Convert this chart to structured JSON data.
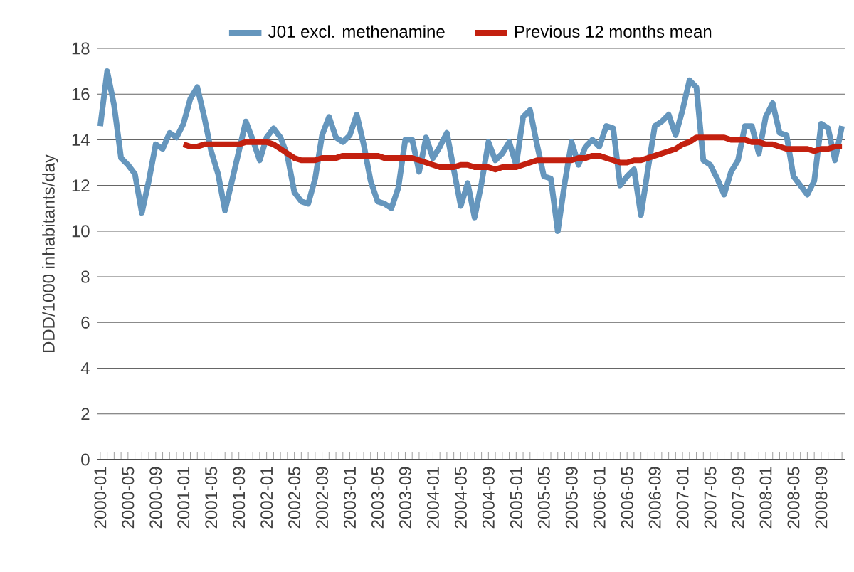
{
  "chart_data": {
    "type": "line",
    "ylabel": "DDD/1000 inhabitants/day",
    "categories": [
      "2000-01",
      null,
      null,
      null,
      "2000-05",
      null,
      null,
      null,
      "2000-09",
      null,
      null,
      null,
      "2001-01",
      null,
      null,
      null,
      "2001-05",
      null,
      null,
      null,
      "2001-09",
      null,
      null,
      null,
      "2002-01",
      null,
      null,
      null,
      "2002-05",
      null,
      null,
      null,
      "2002-09",
      null,
      null,
      null,
      "2003-01",
      null,
      null,
      null,
      "2003-05",
      null,
      null,
      null,
      "2003-09",
      null,
      null,
      null,
      "2004-01",
      null,
      null,
      null,
      "2004-05",
      null,
      null,
      null,
      "2004-09",
      null,
      null,
      null,
      "2005-01",
      null,
      null,
      null,
      "2005-05",
      null,
      null,
      null,
      "2005-09",
      null,
      null,
      null,
      "2006-01",
      null,
      null,
      null,
      "2006-05",
      null,
      null,
      null,
      "2006-09",
      null,
      null,
      null,
      "2007-01",
      null,
      null,
      null,
      "2007-05",
      null,
      null,
      null,
      "2007-09",
      null,
      null,
      null,
      "2008-01",
      null,
      null,
      null,
      "2008-05",
      null,
      null,
      null,
      "2008-09",
      null,
      null,
      null
    ],
    "series": [
      {
        "name": "J01 excl. methenamine",
        "color": "#6596bd",
        "values": [
          14.6,
          17.0,
          15.5,
          13.2,
          12.9,
          12.5,
          10.8,
          12.2,
          13.8,
          13.6,
          14.3,
          14.1,
          14.7,
          15.8,
          16.3,
          15.0,
          13.5,
          12.5,
          10.9,
          12.2,
          13.5,
          14.8,
          14.0,
          13.1,
          14.1,
          14.5,
          14.1,
          13.3,
          11.7,
          11.3,
          11.2,
          12.3,
          14.2,
          15.0,
          14.1,
          13.9,
          14.2,
          15.1,
          13.8,
          12.2,
          11.3,
          11.2,
          11.0,
          11.9,
          14.0,
          14.0,
          12.6,
          14.1,
          13.2,
          13.7,
          14.3,
          12.7,
          11.1,
          12.1,
          10.6,
          12.1,
          13.9,
          13.1,
          13.4,
          13.9,
          12.9,
          15.0,
          15.3,
          13.8,
          12.4,
          12.3,
          10.0,
          12.1,
          13.9,
          12.9,
          13.7,
          14.0,
          13.7,
          14.6,
          14.5,
          12.0,
          12.4,
          12.7,
          10.7,
          12.7,
          14.6,
          14.8,
          15.1,
          14.2,
          15.3,
          16.6,
          16.3,
          13.1,
          12.9,
          12.3,
          11.6,
          12.6,
          13.1,
          14.6,
          14.6,
          13.4,
          15.0,
          15.6,
          14.3,
          14.2,
          12.4,
          12.0,
          11.6,
          12.2,
          14.7,
          14.5,
          13.1,
          14.6
        ]
      },
      {
        "name": "Previous 12 months mean",
        "color": "#c3200f",
        "values": [
          null,
          null,
          null,
          null,
          null,
          null,
          null,
          null,
          null,
          null,
          null,
          null,
          13.8,
          13.7,
          13.7,
          13.8,
          13.8,
          13.8,
          13.8,
          13.8,
          13.8,
          13.9,
          13.9,
          13.9,
          13.9,
          13.8,
          13.6,
          13.4,
          13.2,
          13.1,
          13.1,
          13.1,
          13.2,
          13.2,
          13.2,
          13.3,
          13.3,
          13.3,
          13.3,
          13.3,
          13.3,
          13.2,
          13.2,
          13.2,
          13.2,
          13.2,
          13.1,
          13.0,
          12.9,
          12.8,
          12.8,
          12.8,
          12.9,
          12.9,
          12.8,
          12.8,
          12.8,
          12.7,
          12.8,
          12.8,
          12.8,
          12.9,
          13.0,
          13.1,
          13.1,
          13.1,
          13.1,
          13.1,
          13.1,
          13.2,
          13.2,
          13.3,
          13.3,
          13.2,
          13.1,
          13.0,
          13.0,
          13.1,
          13.1,
          13.2,
          13.3,
          13.4,
          13.5,
          13.6,
          13.8,
          13.9,
          14.1,
          14.1,
          14.1,
          14.1,
          14.1,
          14.0,
          14.0,
          14.0,
          13.9,
          13.9,
          13.8,
          13.8,
          13.7,
          13.6,
          13.6,
          13.6,
          13.6,
          13.5,
          13.6,
          13.6,
          13.7,
          13.7
        ]
      }
    ],
    "ylim": [
      0,
      18
    ],
    "yticks": [
      0,
      2,
      4,
      6,
      8,
      10,
      12,
      14,
      16,
      18
    ],
    "grid": "y",
    "legend": "top",
    "marker": "none",
    "line_style": "solid"
  }
}
